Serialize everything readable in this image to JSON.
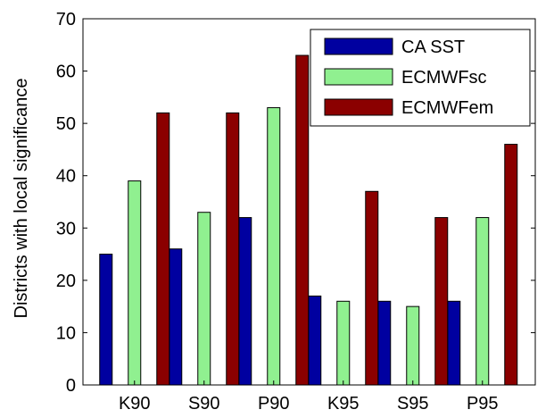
{
  "chart_data": {
    "type": "bar",
    "title": "",
    "xlabel": "",
    "ylabel": "Districts with local significance",
    "categories": [
      "K90",
      "S90",
      "P90",
      "K95",
      "S95",
      "P95"
    ],
    "series": [
      {
        "name": "CA SST",
        "color": "#0000a0",
        "values": [
          25,
          26,
          32,
          17,
          16,
          16
        ]
      },
      {
        "name": "ECMWFsc",
        "color": "#90f090",
        "values": [
          39,
          33,
          53,
          16,
          15,
          32
        ]
      },
      {
        "name": "ECMWFem",
        "color": "#8b0000",
        "values": [
          52,
          52,
          63,
          37,
          32,
          46
        ]
      }
    ],
    "ylim": [
      0,
      70
    ],
    "yticks": [
      0,
      10,
      20,
      30,
      40,
      50,
      60,
      70
    ],
    "grid": false,
    "legend": "top-right"
  }
}
